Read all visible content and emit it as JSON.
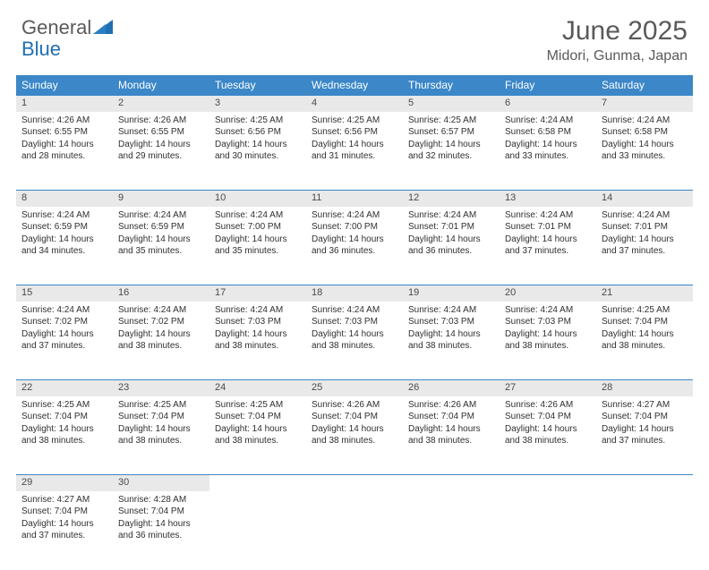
{
  "brand": {
    "name_part1": "General",
    "name_part2": "Blue",
    "text_color": "#5a5a5a",
    "accent_color": "#1f6fb2"
  },
  "header": {
    "month_title": "June 2025",
    "location": "Midori, Gunma, Japan"
  },
  "calendar": {
    "header_bg": "#3b87c8",
    "header_fg": "#ffffff",
    "daynum_bg": "#e9e9e9",
    "border_color": "#3b87c8",
    "day_names": [
      "Sunday",
      "Monday",
      "Tuesday",
      "Wednesday",
      "Thursday",
      "Friday",
      "Saturday"
    ],
    "weeks": [
      {
        "nums": [
          "1",
          "2",
          "3",
          "4",
          "5",
          "6",
          "7"
        ],
        "cells": [
          {
            "sunrise": "Sunrise: 4:26 AM",
            "sunset": "Sunset: 6:55 PM",
            "day1": "Daylight: 14 hours",
            "day2": "and 28 minutes."
          },
          {
            "sunrise": "Sunrise: 4:26 AM",
            "sunset": "Sunset: 6:55 PM",
            "day1": "Daylight: 14 hours",
            "day2": "and 29 minutes."
          },
          {
            "sunrise": "Sunrise: 4:25 AM",
            "sunset": "Sunset: 6:56 PM",
            "day1": "Daylight: 14 hours",
            "day2": "and 30 minutes."
          },
          {
            "sunrise": "Sunrise: 4:25 AM",
            "sunset": "Sunset: 6:56 PM",
            "day1": "Daylight: 14 hours",
            "day2": "and 31 minutes."
          },
          {
            "sunrise": "Sunrise: 4:25 AM",
            "sunset": "Sunset: 6:57 PM",
            "day1": "Daylight: 14 hours",
            "day2": "and 32 minutes."
          },
          {
            "sunrise": "Sunrise: 4:24 AM",
            "sunset": "Sunset: 6:58 PM",
            "day1": "Daylight: 14 hours",
            "day2": "and 33 minutes."
          },
          {
            "sunrise": "Sunrise: 4:24 AM",
            "sunset": "Sunset: 6:58 PM",
            "day1": "Daylight: 14 hours",
            "day2": "and 33 minutes."
          }
        ]
      },
      {
        "nums": [
          "8",
          "9",
          "10",
          "11",
          "12",
          "13",
          "14"
        ],
        "cells": [
          {
            "sunrise": "Sunrise: 4:24 AM",
            "sunset": "Sunset: 6:59 PM",
            "day1": "Daylight: 14 hours",
            "day2": "and 34 minutes."
          },
          {
            "sunrise": "Sunrise: 4:24 AM",
            "sunset": "Sunset: 6:59 PM",
            "day1": "Daylight: 14 hours",
            "day2": "and 35 minutes."
          },
          {
            "sunrise": "Sunrise: 4:24 AM",
            "sunset": "Sunset: 7:00 PM",
            "day1": "Daylight: 14 hours",
            "day2": "and 35 minutes."
          },
          {
            "sunrise": "Sunrise: 4:24 AM",
            "sunset": "Sunset: 7:00 PM",
            "day1": "Daylight: 14 hours",
            "day2": "and 36 minutes."
          },
          {
            "sunrise": "Sunrise: 4:24 AM",
            "sunset": "Sunset: 7:01 PM",
            "day1": "Daylight: 14 hours",
            "day2": "and 36 minutes."
          },
          {
            "sunrise": "Sunrise: 4:24 AM",
            "sunset": "Sunset: 7:01 PM",
            "day1": "Daylight: 14 hours",
            "day2": "and 37 minutes."
          },
          {
            "sunrise": "Sunrise: 4:24 AM",
            "sunset": "Sunset: 7:01 PM",
            "day1": "Daylight: 14 hours",
            "day2": "and 37 minutes."
          }
        ]
      },
      {
        "nums": [
          "15",
          "16",
          "17",
          "18",
          "19",
          "20",
          "21"
        ],
        "cells": [
          {
            "sunrise": "Sunrise: 4:24 AM",
            "sunset": "Sunset: 7:02 PM",
            "day1": "Daylight: 14 hours",
            "day2": "and 37 minutes."
          },
          {
            "sunrise": "Sunrise: 4:24 AM",
            "sunset": "Sunset: 7:02 PM",
            "day1": "Daylight: 14 hours",
            "day2": "and 38 minutes."
          },
          {
            "sunrise": "Sunrise: 4:24 AM",
            "sunset": "Sunset: 7:03 PM",
            "day1": "Daylight: 14 hours",
            "day2": "and 38 minutes."
          },
          {
            "sunrise": "Sunrise: 4:24 AM",
            "sunset": "Sunset: 7:03 PM",
            "day1": "Daylight: 14 hours",
            "day2": "and 38 minutes."
          },
          {
            "sunrise": "Sunrise: 4:24 AM",
            "sunset": "Sunset: 7:03 PM",
            "day1": "Daylight: 14 hours",
            "day2": "and 38 minutes."
          },
          {
            "sunrise": "Sunrise: 4:24 AM",
            "sunset": "Sunset: 7:03 PM",
            "day1": "Daylight: 14 hours",
            "day2": "and 38 minutes."
          },
          {
            "sunrise": "Sunrise: 4:25 AM",
            "sunset": "Sunset: 7:04 PM",
            "day1": "Daylight: 14 hours",
            "day2": "and 38 minutes."
          }
        ]
      },
      {
        "nums": [
          "22",
          "23",
          "24",
          "25",
          "26",
          "27",
          "28"
        ],
        "cells": [
          {
            "sunrise": "Sunrise: 4:25 AM",
            "sunset": "Sunset: 7:04 PM",
            "day1": "Daylight: 14 hours",
            "day2": "and 38 minutes."
          },
          {
            "sunrise": "Sunrise: 4:25 AM",
            "sunset": "Sunset: 7:04 PM",
            "day1": "Daylight: 14 hours",
            "day2": "and 38 minutes."
          },
          {
            "sunrise": "Sunrise: 4:25 AM",
            "sunset": "Sunset: 7:04 PM",
            "day1": "Daylight: 14 hours",
            "day2": "and 38 minutes."
          },
          {
            "sunrise": "Sunrise: 4:26 AM",
            "sunset": "Sunset: 7:04 PM",
            "day1": "Daylight: 14 hours",
            "day2": "and 38 minutes."
          },
          {
            "sunrise": "Sunrise: 4:26 AM",
            "sunset": "Sunset: 7:04 PM",
            "day1": "Daylight: 14 hours",
            "day2": "and 38 minutes."
          },
          {
            "sunrise": "Sunrise: 4:26 AM",
            "sunset": "Sunset: 7:04 PM",
            "day1": "Daylight: 14 hours",
            "day2": "and 38 minutes."
          },
          {
            "sunrise": "Sunrise: 4:27 AM",
            "sunset": "Sunset: 7:04 PM",
            "day1": "Daylight: 14 hours",
            "day2": "and 37 minutes."
          }
        ]
      },
      {
        "nums": [
          "29",
          "30",
          "",
          "",
          "",
          "",
          ""
        ],
        "cells": [
          {
            "sunrise": "Sunrise: 4:27 AM",
            "sunset": "Sunset: 7:04 PM",
            "day1": "Daylight: 14 hours",
            "day2": "and 37 minutes."
          },
          {
            "sunrise": "Sunrise: 4:28 AM",
            "sunset": "Sunset: 7:04 PM",
            "day1": "Daylight: 14 hours",
            "day2": "and 36 minutes."
          },
          null,
          null,
          null,
          null,
          null
        ]
      }
    ]
  }
}
